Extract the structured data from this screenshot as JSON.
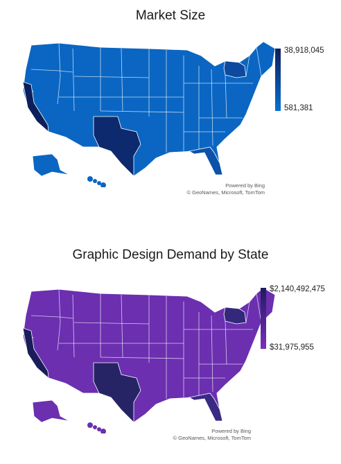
{
  "maps": [
    {
      "title": "Market Size",
      "base_color": "#0a66c2",
      "dark_color": "#0c1f5c",
      "highlight_states": [
        {
          "state": "California",
          "color": "#0c1f5c"
        },
        {
          "state": "Texas",
          "color": "#0d2a6e"
        },
        {
          "state": "Florida",
          "color": "#0b52a8"
        },
        {
          "state": "New York",
          "color": "#0b4a9e"
        }
      ],
      "legend": {
        "max": "38,918,045",
        "min": "581,381",
        "top_color": "#0c1f5c",
        "bottom_color": "#0a6fd0"
      },
      "attribution": {
        "line1": "Powered by Bing",
        "line2": "© GeoNames, Microsoft, TomTom"
      }
    },
    {
      "title": "Graphic Design Demand by State",
      "base_color": "#6b2fb0",
      "dark_color": "#1e1b5e",
      "highlight_states": [
        {
          "state": "California",
          "color": "#1a1d5a"
        },
        {
          "state": "Texas",
          "color": "#272466"
        },
        {
          "state": "Florida",
          "color": "#3a2a86"
        },
        {
          "state": "New York",
          "color": "#33287c"
        }
      ],
      "legend": {
        "max": "$2,140,492,475",
        "min": "$31,975,955",
        "top_color": "#1e1b5e",
        "bottom_color": "#7a2fbf"
      },
      "attribution": {
        "line1": "Powered by Bing",
        "line2": "© GeoNames, Microsoft, TomTom"
      }
    }
  ]
}
